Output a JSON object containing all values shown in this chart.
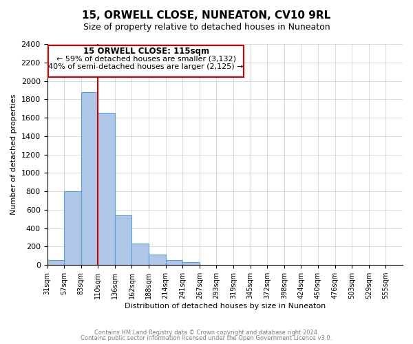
{
  "title": "15, ORWELL CLOSE, NUNEATON, CV10 9RL",
  "subtitle": "Size of property relative to detached houses in Nuneaton",
  "xlabel": "Distribution of detached houses by size in Nuneaton",
  "ylabel": "Number of detached properties",
  "footer_line1": "Contains HM Land Registry data © Crown copyright and database right 2024.",
  "footer_line2": "Contains public sector information licensed under the Open Government Licence v3.0.",
  "bin_labels": [
    "31sqm",
    "57sqm",
    "83sqm",
    "110sqm",
    "136sqm",
    "162sqm",
    "188sqm",
    "214sqm",
    "241sqm",
    "267sqm",
    "293sqm",
    "319sqm",
    "345sqm",
    "372sqm",
    "398sqm",
    "424sqm",
    "450sqm",
    "476sqm",
    "503sqm",
    "529sqm",
    "555sqm"
  ],
  "bar_values": [
    55,
    800,
    1880,
    1650,
    540,
    235,
    110,
    55,
    30,
    0,
    0,
    0,
    0,
    0,
    0,
    0,
    0,
    0,
    0,
    0
  ],
  "bar_color": "#aec6e8",
  "bar_edge_color": "#5a9fd4",
  "ylim": [
    0,
    2400
  ],
  "yticks": [
    0,
    200,
    400,
    600,
    800,
    1000,
    1200,
    1400,
    1600,
    1800,
    2000,
    2200,
    2400
  ],
  "property_line_x": 3,
  "property_line_color": "#cc0000",
  "annotation_box_text_line1": "15 ORWELL CLOSE: 115sqm",
  "annotation_box_text_line2": "← 59% of detached houses are smaller (3,132)",
  "annotation_box_text_line3": "40% of semi-detached houses are larger (2,125) →",
  "annotation_box_color": "#cc0000",
  "background_color": "#ffffff",
  "grid_color": "#cccccc"
}
